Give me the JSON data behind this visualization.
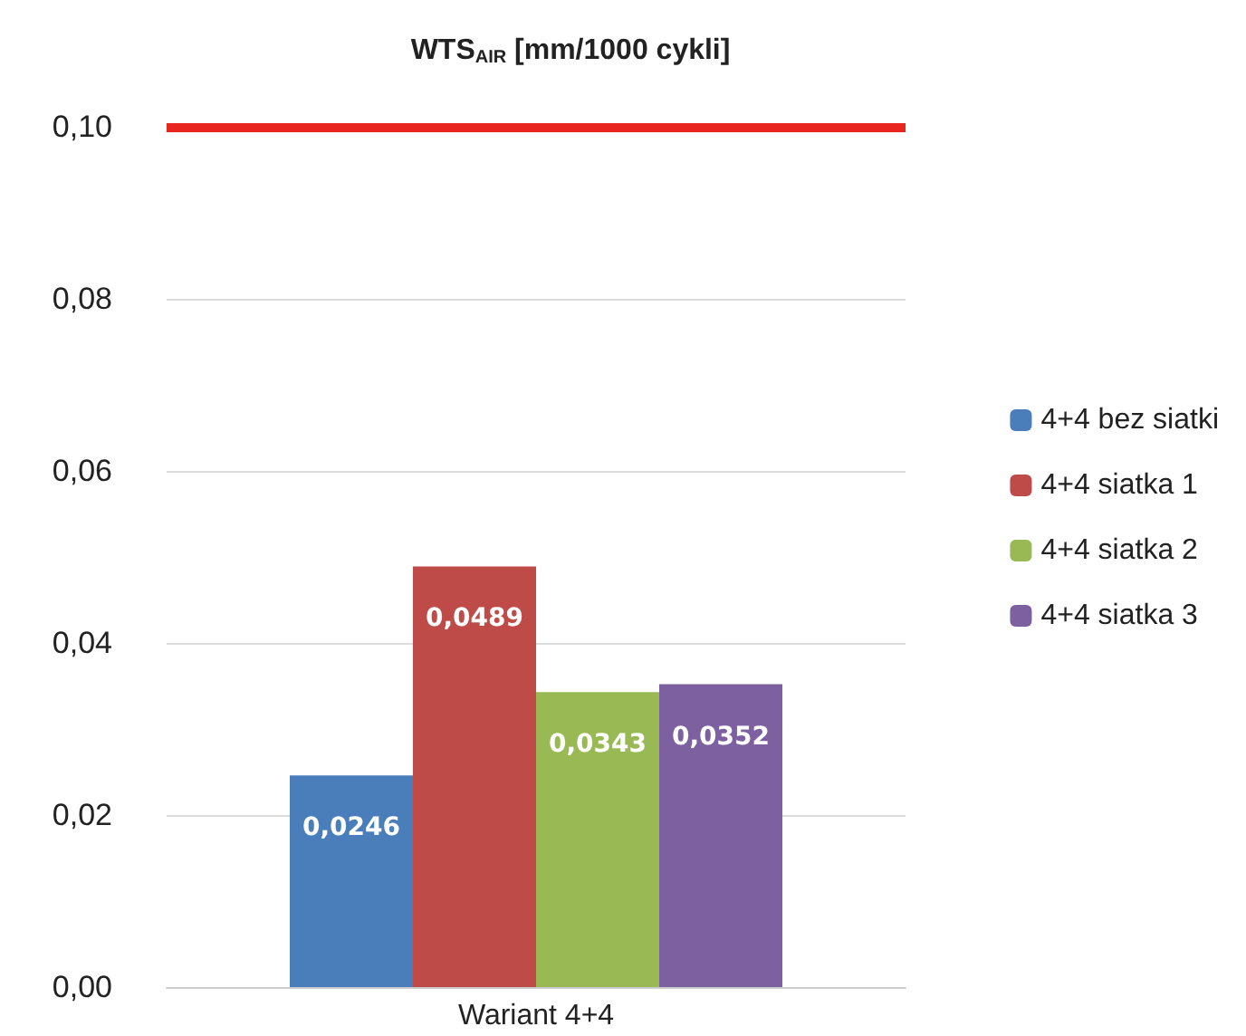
{
  "chart_data": {
    "type": "bar",
    "title": "WTS$_{AIR}$ [mm/1000 cykli]",
    "categories": [
      "Wariant 4+4"
    ],
    "series": [
      {
        "name": "4+4 bez siatki",
        "color": "#4a7ebb",
        "values": [
          0.0246
        ],
        "value_labels": [
          "0,0246"
        ]
      },
      {
        "name": "4+4 siatka 1",
        "color": "#be4b48",
        "values": [
          0.0489
        ],
        "value_labels": [
          "0,0489"
        ]
      },
      {
        "name": "4+4 siatka 2",
        "color": "#98b954",
        "values": [
          0.0343
        ],
        "value_labels": [
          "0,0343"
        ]
      },
      {
        "name": "4+4 siatka 3",
        "color": "#7d60a0",
        "values": [
          0.0352
        ],
        "value_labels": [
          "0,0352"
        ]
      }
    ],
    "ylim": [
      0,
      0.1
    ],
    "yticks": [
      {
        "value": 0,
        "label": "0,00"
      },
      {
        "value": 0.02,
        "label": "0,02"
      },
      {
        "value": 0.04,
        "label": "0,04"
      },
      {
        "value": 0.06,
        "label": "0,06"
      },
      {
        "value": 0.08,
        "label": "0,08"
      },
      {
        "value": 0.1,
        "label": "0,10"
      }
    ],
    "ref_lines": [
      {
        "axis": "y",
        "value": 0.1,
        "color": "#e8251f"
      }
    ],
    "grid": "y",
    "legend": "right"
  }
}
